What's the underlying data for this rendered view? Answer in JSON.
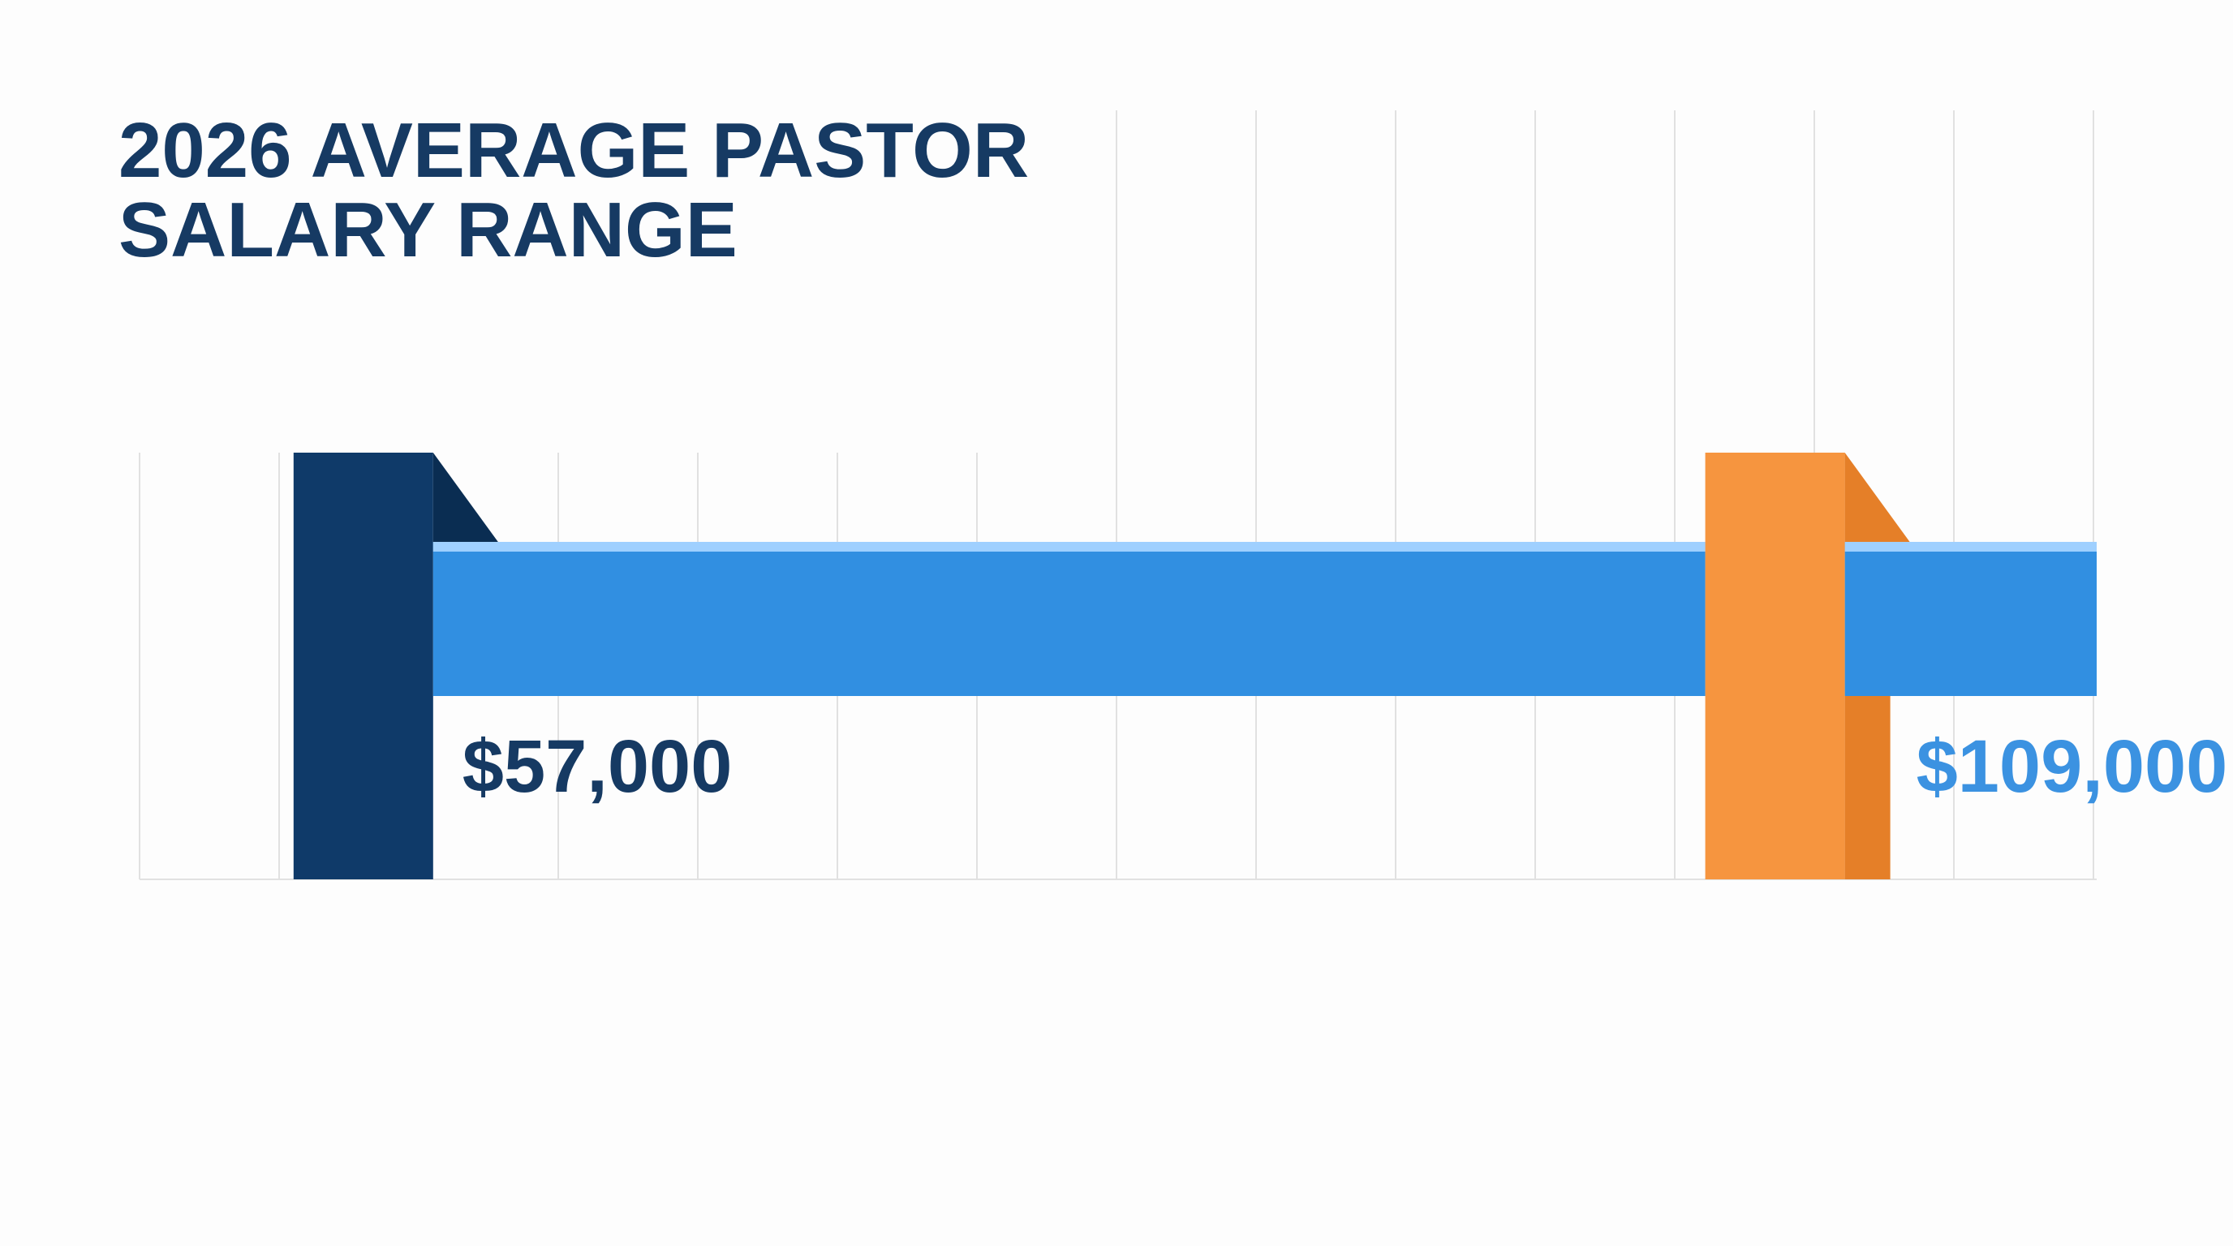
{
  "chart_data": {
    "type": "bar",
    "title": "2026 AVERAGE PASTOR SALARY RANGE",
    "title_lines": [
      "2026 AVERAGE PASTOR",
      "SALARY RANGE"
    ],
    "categories": [
      "$57,000",
      "$109,000"
    ],
    "values": [
      57000,
      109000
    ],
    "labels": [
      "$57,000",
      "$109,000"
    ],
    "range": [
      57000,
      109000
    ],
    "xlim": [
      45000,
      125000
    ],
    "grid": true,
    "xlabel": "",
    "ylabel": ""
  },
  "colors": {
    "title": "#163a63",
    "low_marker": "#0f3a69",
    "low_marker_fold": "#0a2d52",
    "high_marker": "#f6953f",
    "high_marker_shade": "#e57f28",
    "bar_fill": "#318fe1",
    "bar_highlight": "#9fd0ff",
    "low_label": "#163a63",
    "high_label": "#3b92e1",
    "grid": "#e1e1e1"
  }
}
